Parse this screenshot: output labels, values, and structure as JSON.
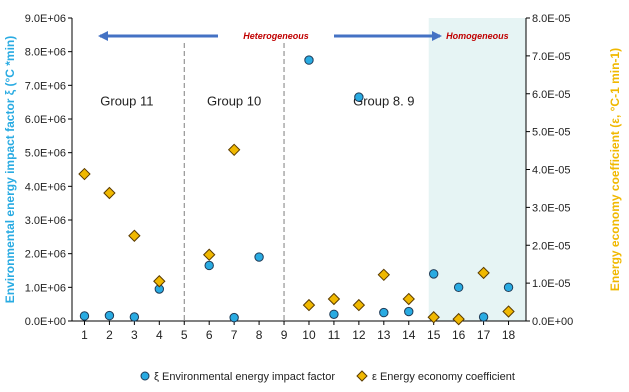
{
  "chart_data": {
    "type": "scatter",
    "xlabel": "",
    "ylabel_left": "Environmental energy impact factor ξ (°C *min)",
    "ylabel_right": "Energy economy coefficient (ε, °C-1 min-1)",
    "x_ticks": [
      "1",
      "2",
      "3",
      "4",
      "5",
      "6",
      "7",
      "8",
      "9",
      "10",
      "11",
      "12",
      "13",
      "14",
      "15",
      "16",
      "17",
      "18"
    ],
    "x_range": [
      0.5,
      18.7
    ],
    "ylim_left": [
      0,
      9000000
    ],
    "ylim_right": [
      0,
      8e-05
    ],
    "y_ticks_left": [
      "0.0E+00",
      "1.0E+06",
      "2.0E+06",
      "3.0E+06",
      "4.0E+06",
      "5.0E+06",
      "6.0E+06",
      "7.0E+06",
      "8.0E+06",
      "9.0E+06"
    ],
    "y_ticks_right": [
      "0.0E+00",
      "1.0E-05",
      "2.0E-05",
      "3.0E-05",
      "4.0E-05",
      "5.0E-05",
      "6.0E-05",
      "7.0E-05",
      "8.0E-05"
    ],
    "dividers_x": [
      5,
      9
    ],
    "homogeneous_region_start_x": 14.8,
    "group_labels": [
      {
        "text": "Group 11",
        "x": 2.7,
        "y": 6400000
      },
      {
        "text": "Group 10",
        "x": 7.0,
        "y": 6400000
      },
      {
        "text": "Group 8. 9",
        "x": 13.0,
        "y": 6400000
      }
    ],
    "region_labels": {
      "heterogeneous": "Heterogeneous",
      "homogeneous": "Homogeneous"
    },
    "series": [
      {
        "name": "ξ Environmental energy impact factor",
        "axis": "left",
        "marker": "circle",
        "color": "#29abe2",
        "points": [
          [
            1,
            150000
          ],
          [
            2,
            160000
          ],
          [
            3,
            120000
          ],
          [
            4,
            950000
          ],
          [
            6,
            1650000
          ],
          [
            7,
            100000
          ],
          [
            8,
            1900000
          ],
          [
            10,
            7750000
          ],
          [
            11,
            200000
          ],
          [
            12,
            6650000
          ],
          [
            13,
            250000
          ],
          [
            14,
            280000
          ],
          [
            15,
            1400000
          ],
          [
            16,
            1000000
          ],
          [
            17,
            120000
          ],
          [
            18,
            1000000
          ]
        ]
      },
      {
        "name": "ε Energy economy coefficient",
        "axis": "right",
        "marker": "diamond",
        "color": "#f0b800",
        "points": [
          [
            1,
            3.88e-05
          ],
          [
            2,
            3.38e-05
          ],
          [
            3,
            2.25e-05
          ],
          [
            4,
            1.05e-05
          ],
          [
            6,
            1.75e-05
          ],
          [
            7,
            4.52e-05
          ],
          [
            10,
            4.2e-06
          ],
          [
            11,
            5.8e-06
          ],
          [
            12,
            4.2e-06
          ],
          [
            13,
            1.22e-05
          ],
          [
            14,
            5.8e-06
          ],
          [
            15,
            1e-06
          ],
          [
            16,
            5e-07
          ],
          [
            17,
            1.27e-05
          ],
          [
            18,
            2.5e-06
          ]
        ]
      }
    ],
    "legend": {
      "position": "bottom",
      "items": [
        "ξ Environmental energy impact factor",
        "ε Energy economy coefficient"
      ]
    },
    "colors": {
      "xi": "#29abe2",
      "epsilon": "#f0b800",
      "arrow": "#4472c4",
      "region_label": "#c00000",
      "homogeneous_bg": "#e6f4f4"
    }
  }
}
